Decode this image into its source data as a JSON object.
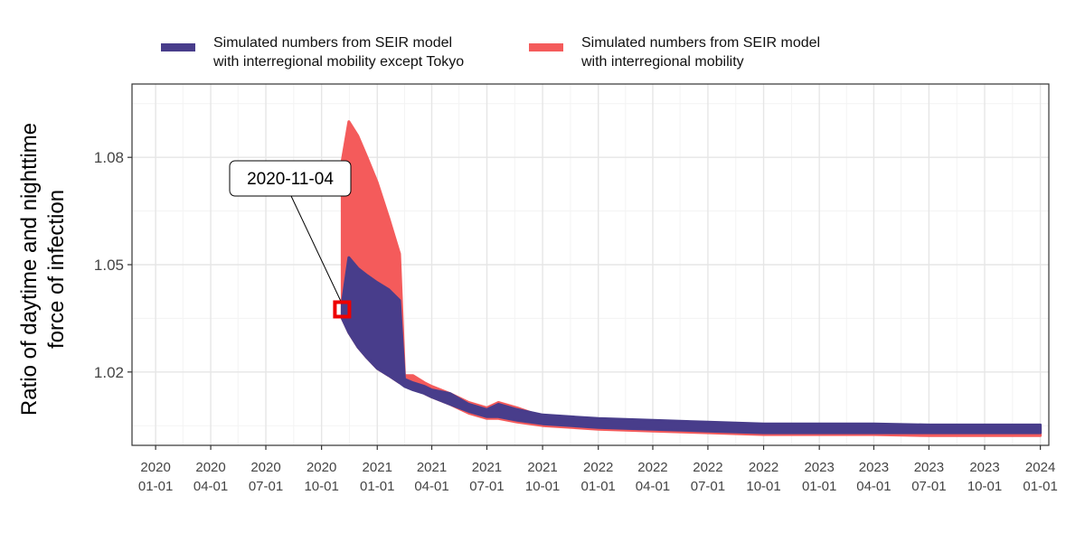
{
  "chart_data": {
    "type": "area",
    "title": "",
    "xlabel": "",
    "ylabel": {
      "line1": "Ratio of daytime and nighttime",
      "line2": "force of infection"
    },
    "xlim": [
      "2019-11-23",
      "2024-01-15"
    ],
    "ylim": [
      0.9995,
      1.1005
    ],
    "grid": true,
    "legend_placement": "top",
    "x_ticks": [
      {
        "date": "2020-01-01",
        "year": "2020",
        "md": "01-01"
      },
      {
        "date": "2020-04-01",
        "year": "2020",
        "md": "04-01"
      },
      {
        "date": "2020-07-01",
        "year": "2020",
        "md": "07-01"
      },
      {
        "date": "2020-10-01",
        "year": "2020",
        "md": "10-01"
      },
      {
        "date": "2021-01-01",
        "year": "2021",
        "md": "01-01"
      },
      {
        "date": "2021-04-01",
        "year": "2021",
        "md": "04-01"
      },
      {
        "date": "2021-07-01",
        "year": "2021",
        "md": "07-01"
      },
      {
        "date": "2021-10-01",
        "year": "2021",
        "md": "10-01"
      },
      {
        "date": "2022-01-01",
        "year": "2022",
        "md": "01-01"
      },
      {
        "date": "2022-04-01",
        "year": "2022",
        "md": "04-01"
      },
      {
        "date": "2022-07-01",
        "year": "2022",
        "md": "07-01"
      },
      {
        "date": "2022-10-01",
        "year": "2022",
        "md": "10-01"
      },
      {
        "date": "2023-01-01",
        "year": "2023",
        "md": "01-01"
      },
      {
        "date": "2023-04-01",
        "year": "2023",
        "md": "04-01"
      },
      {
        "date": "2023-07-01",
        "year": "2023",
        "md": "07-01"
      },
      {
        "date": "2023-10-01",
        "year": "2023",
        "md": "10-01"
      },
      {
        "date": "2024-01-01",
        "year": "2024",
        "md": "01-01"
      }
    ],
    "y_ticks": [
      {
        "value": 1.02,
        "label": "1.02"
      },
      {
        "value": 1.05,
        "label": "1.05"
      },
      {
        "value": 1.08,
        "label": "1.08"
      }
    ],
    "series": [
      {
        "name_line1": "Simulated numbers from SEIR model",
        "name_line2": "with interregional mobility",
        "color": "#F45B5B",
        "points": [
          {
            "x": "2020-11-04",
            "low": 1.035,
            "high": 1.079
          },
          {
            "x": "2020-11-15",
            "low": 1.031,
            "high": 1.09
          },
          {
            "x": "2020-11-30",
            "low": 1.027,
            "high": 1.086
          },
          {
            "x": "2020-12-15",
            "low": 1.024,
            "high": 1.08
          },
          {
            "x": "2021-01-01",
            "low": 1.021,
            "high": 1.073
          },
          {
            "x": "2021-01-20",
            "low": 1.019,
            "high": 1.063
          },
          {
            "x": "2021-02-07",
            "low": 1.017,
            "high": 1.053
          },
          {
            "x": "2021-02-15",
            "low": 1.017,
            "high": 1.019
          },
          {
            "x": "2021-03-01",
            "low": 1.016,
            "high": 1.019
          },
          {
            "x": "2021-03-20",
            "low": 1.014,
            "high": 1.017
          },
          {
            "x": "2021-04-01",
            "low": 1.013,
            "high": 1.016
          },
          {
            "x": "2021-05-01",
            "low": 1.011,
            "high": 1.014
          },
          {
            "x": "2021-06-01",
            "low": 1.0085,
            "high": 1.0115
          },
          {
            "x": "2021-07-01",
            "low": 1.007,
            "high": 1.01
          },
          {
            "x": "2021-07-20",
            "low": 1.007,
            "high": 1.0115
          },
          {
            "x": "2021-08-20",
            "low": 1.006,
            "high": 1.01
          },
          {
            "x": "2021-10-01",
            "low": 1.005,
            "high": 1.0075
          },
          {
            "x": "2022-01-01",
            "low": 1.004,
            "high": 1.0065
          },
          {
            "x": "2022-04-01",
            "low": 1.0035,
            "high": 1.0055
          },
          {
            "x": "2022-07-01",
            "low": 1.003,
            "high": 1.0055
          },
          {
            "x": "2022-10-01",
            "low": 1.0025,
            "high": 1.005
          },
          {
            "x": "2023-01-01",
            "low": 1.0025,
            "high": 1.005
          },
          {
            "x": "2023-04-01",
            "low": 1.0025,
            "high": 1.0048
          },
          {
            "x": "2023-07-01",
            "low": 1.0022,
            "high": 1.0048
          },
          {
            "x": "2023-10-01",
            "low": 1.0022,
            "high": 1.0048
          },
          {
            "x": "2024-01-01",
            "low": 1.0022,
            "high": 1.0048
          }
        ]
      },
      {
        "name_line1": "Simulated numbers from SEIR model",
        "name_line2": "with interregional mobility except Tokyo",
        "color": "#483D8B",
        "points": [
          {
            "x": "2020-11-04",
            "low": 1.035,
            "high": 1.039
          },
          {
            "x": "2020-11-15",
            "low": 1.031,
            "high": 1.052
          },
          {
            "x": "2020-11-30",
            "low": 1.027,
            "high": 1.049
          },
          {
            "x": "2020-12-15",
            "low": 1.024,
            "high": 1.047
          },
          {
            "x": "2021-01-01",
            "low": 1.021,
            "high": 1.045
          },
          {
            "x": "2021-01-20",
            "low": 1.019,
            "high": 1.043
          },
          {
            "x": "2021-02-07",
            "low": 1.017,
            "high": 1.04
          },
          {
            "x": "2021-02-15",
            "low": 1.016,
            "high": 1.018
          },
          {
            "x": "2021-03-01",
            "low": 1.015,
            "high": 1.017
          },
          {
            "x": "2021-03-20",
            "low": 1.014,
            "high": 1.016
          },
          {
            "x": "2021-04-01",
            "low": 1.013,
            "high": 1.015
          },
          {
            "x": "2021-05-01",
            "low": 1.011,
            "high": 1.014
          },
          {
            "x": "2021-06-01",
            "low": 1.009,
            "high": 1.011
          },
          {
            "x": "2021-07-01",
            "low": 1.0075,
            "high": 1.0095
          },
          {
            "x": "2021-07-20",
            "low": 1.0075,
            "high": 1.011
          },
          {
            "x": "2021-08-20",
            "low": 1.0065,
            "high": 1.0095
          },
          {
            "x": "2021-10-01",
            "low": 1.0055,
            "high": 1.008
          },
          {
            "x": "2022-01-01",
            "low": 1.0045,
            "high": 1.007
          },
          {
            "x": "2022-04-01",
            "low": 1.004,
            "high": 1.0065
          },
          {
            "x": "2022-07-01",
            "low": 1.0035,
            "high": 1.006
          },
          {
            "x": "2022-10-01",
            "low": 1.003,
            "high": 1.0055
          },
          {
            "x": "2023-01-01",
            "low": 1.003,
            "high": 1.0055
          },
          {
            "x": "2023-04-01",
            "low": 1.003,
            "high": 1.0055
          },
          {
            "x": "2023-07-01",
            "low": 1.003,
            "high": 1.0052
          },
          {
            "x": "2023-10-01",
            "low": 1.003,
            "high": 1.0052
          },
          {
            "x": "2024-01-01",
            "low": 1.003,
            "high": 1.0052
          }
        ]
      }
    ],
    "annotation": {
      "label": "2020-11-04",
      "x": "2020-11-04",
      "y": 1.0375,
      "box_color": "#EE0000"
    }
  }
}
